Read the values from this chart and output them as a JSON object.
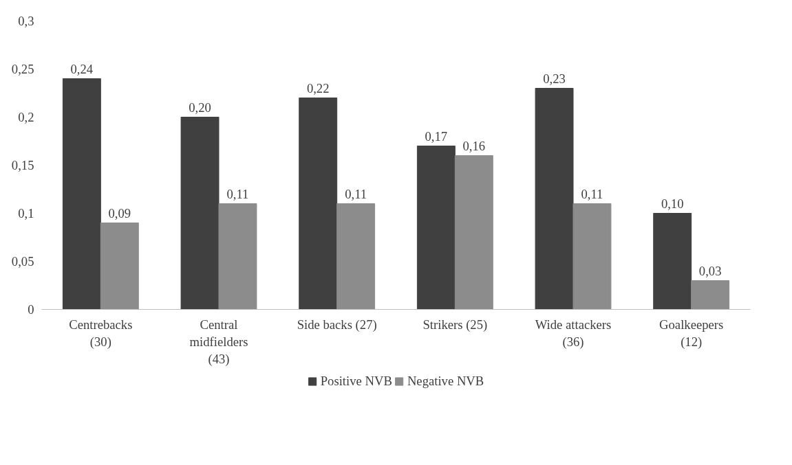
{
  "chart_data": {
    "type": "bar",
    "categories": [
      "Centrebacks (30)",
      "Central midfielders (43)",
      "Side backs (27)",
      "Strikers (25)",
      "Wide attackers (36)",
      "Goalkeepers (12)"
    ],
    "series": [
      {
        "name": "Positive NVB",
        "color": "#404040",
        "values": [
          0.24,
          0.2,
          0.22,
          0.17,
          0.23,
          0.1
        ],
        "value_labels": [
          "0,24",
          "0,20",
          "0,22",
          "0,17",
          "0,23",
          "0,10"
        ]
      },
      {
        "name": "Negative NVB",
        "color": "#8c8c8c",
        "values": [
          0.09,
          0.11,
          0.11,
          0.16,
          0.11,
          0.03
        ],
        "value_labels": [
          "0,09",
          "0,11",
          "0,11",
          "0,16",
          "0,11",
          "0,03"
        ]
      }
    ],
    "ylim": [
      0,
      0.3
    ],
    "yticks": [
      {
        "value": 0,
        "label": "0"
      },
      {
        "value": 0.05,
        "label": "0,05"
      },
      {
        "value": 0.1,
        "label": "0,1"
      },
      {
        "value": 0.15,
        "label": "0,15"
      },
      {
        "value": 0.2,
        "label": "0,2"
      },
      {
        "value": 0.25,
        "label": "0,25"
      },
      {
        "value": 0.3,
        "label": "0,3"
      }
    ],
    "grid": false,
    "legend": "bottom"
  }
}
